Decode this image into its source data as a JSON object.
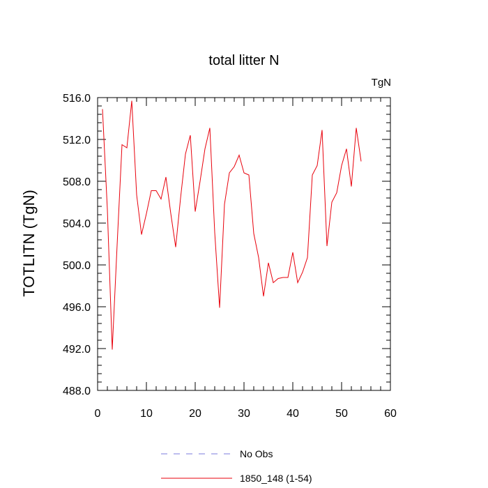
{
  "chart_data": {
    "type": "line",
    "title": "total litter N",
    "units_label": "TgN",
    "xlabel": "",
    "ylabel": "TOTLITN  (TgN)",
    "xlim": [
      0,
      60
    ],
    "ylim": [
      488.0,
      516.0
    ],
    "xticks": [
      0,
      10,
      20,
      30,
      40,
      50,
      60
    ],
    "xtick_labels": [
      "0",
      "10",
      "20",
      "30",
      "40",
      "50",
      "60"
    ],
    "yticks": [
      488.0,
      492.0,
      496.0,
      500.0,
      504.0,
      508.0,
      512.0,
      516.0
    ],
    "ytick_labels": [
      "488.0",
      "492.0",
      "496.0",
      "500.0",
      "504.0",
      "508.0",
      "512.0",
      "516.0"
    ],
    "grid": false,
    "legend_position": "bottom-center",
    "legend": [
      {
        "label": "No Obs",
        "style": "dashed",
        "color": "#7b7bdc"
      },
      {
        "label": "1850_148 (1-54)",
        "style": "solid",
        "color": "#e8000b"
      }
    ],
    "series": [
      {
        "name": "1850_148 (1-54)",
        "color": "#e8000b",
        "x": [
          1,
          2,
          3,
          4,
          5,
          6,
          7,
          8,
          9,
          10,
          11,
          12,
          13,
          14,
          15,
          16,
          17,
          18,
          19,
          20,
          21,
          22,
          23,
          24,
          25,
          26,
          27,
          28,
          29,
          30,
          31,
          32,
          33,
          34,
          35,
          36,
          37,
          38,
          39,
          40,
          41,
          42,
          43,
          44,
          45,
          46,
          47,
          48,
          49,
          50,
          51,
          52,
          53,
          54
        ],
        "y": [
          514.9,
          505.3,
          491.9,
          501.9,
          511.5,
          511.2,
          515.7,
          506.7,
          502.9,
          504.9,
          507.1,
          507.1,
          506.3,
          508.4,
          504.9,
          501.7,
          506.4,
          510.6,
          512.4,
          505.1,
          508.0,
          511.1,
          513.1,
          503.1,
          495.9,
          505.8,
          508.8,
          509.4,
          510.5,
          508.8,
          508.6,
          503.0,
          500.7,
          497.0,
          500.2,
          498.3,
          498.7,
          498.8,
          498.8,
          501.2,
          498.3,
          499.3,
          500.7,
          508.6,
          509.5,
          512.9,
          501.8,
          506.0,
          506.9,
          509.5,
          511.1,
          507.5,
          513.1,
          509.9
        ]
      }
    ]
  }
}
